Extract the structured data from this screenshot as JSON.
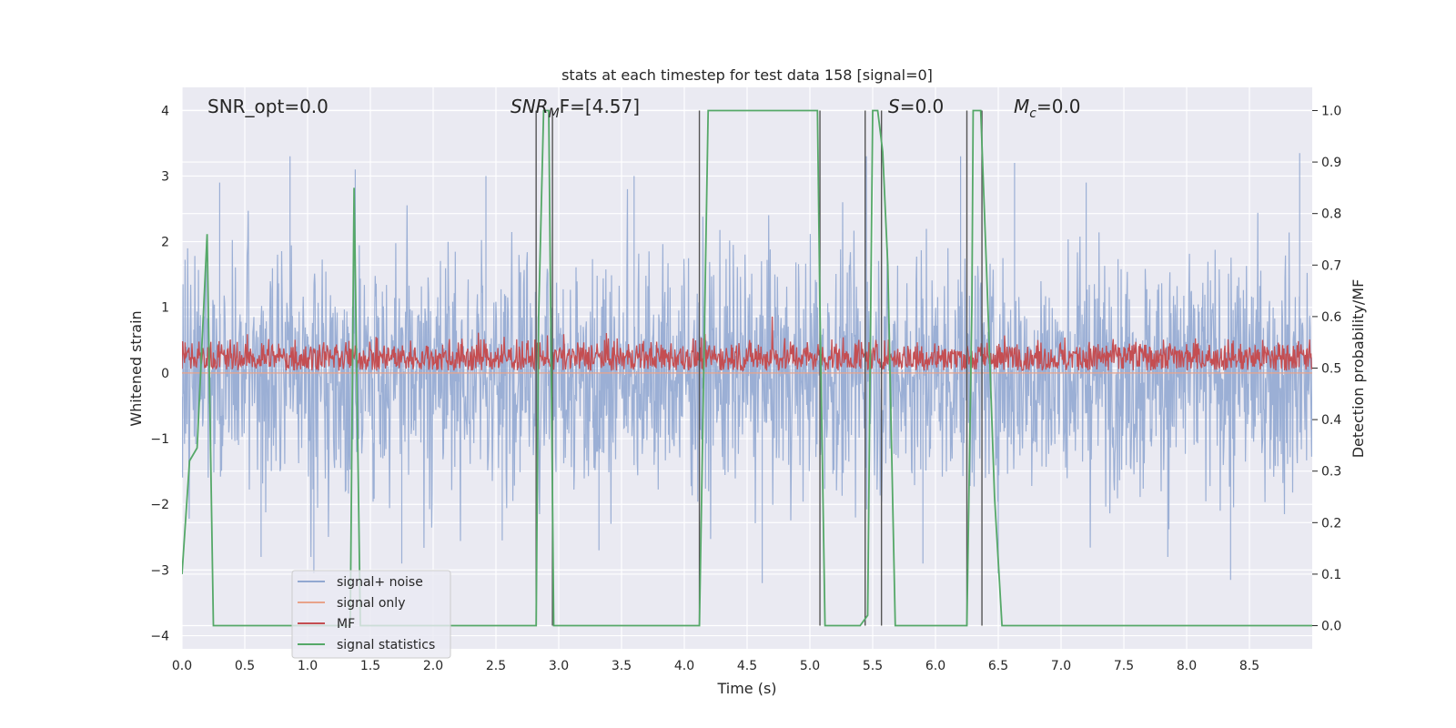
{
  "chart_data": {
    "type": "line",
    "title": "stats at each timestep for test data 158 [signal=0]",
    "xlabel": "Time (s)",
    "ylabel": "Whitened strain",
    "y2label": "Detection probability/MF",
    "xlim": [
      0.0,
      9.0
    ],
    "ylim": [
      -4.2,
      4.35
    ],
    "y2lim": [
      -0.045,
      1.045
    ],
    "xticks": [
      "0.0",
      "0.5",
      "1.0",
      "1.5",
      "2.0",
      "2.5",
      "3.0",
      "3.5",
      "4.0",
      "4.5",
      "5.0",
      "5.5",
      "6.0",
      "6.5",
      "7.0",
      "7.5",
      "8.0",
      "8.5"
    ],
    "yticks": [
      "4",
      "3",
      "2",
      "1",
      "0",
      "−1",
      "−2",
      "−3",
      "−4"
    ],
    "y2ticks": [
      "1.0",
      "0.9",
      "0.8",
      "0.7",
      "0.6",
      "0.5",
      "0.4",
      "0.3",
      "0.2",
      "0.1",
      "0.0"
    ],
    "grid": true,
    "legend_position": "lower-left",
    "annotations": {
      "snr_opt": "SNR_opt=0.0",
      "snr_mf_main": "SNR",
      "snr_mf_sub": "M",
      "snr_mf_rest": "F=[4.57]",
      "s_main": "S",
      "s_rest": "=0.0",
      "mc_main": "M",
      "mc_sub": "c",
      "mc_rest": "=0.0"
    },
    "series": [
      {
        "name": "signal+ noise",
        "color": "#92a8d1",
        "description_values": "Gaussian-like whitened noise, mostly within -1.5 to 1.5, peaks reaching about ±3.3",
        "envelope": {
          "x": [
            0.0,
            9.0
          ],
          "ylow": -1.5,
          "yhigh": 1.5
        },
        "spikes": [
          {
            "x": 0.86,
            "y": 3.3
          },
          {
            "x": 1.38,
            "y": 3.1
          },
          {
            "x": 0.3,
            "y": 2.9
          },
          {
            "x": 2.42,
            "y": 3.0
          },
          {
            "x": 3.6,
            "y": 3.0
          },
          {
            "x": 5.45,
            "y": 3.3
          },
          {
            "x": 6.2,
            "y": 3.3
          },
          {
            "x": 6.63,
            "y": 3.2
          },
          {
            "x": 8.9,
            "y": 3.35
          },
          {
            "x": 7.2,
            "y": 2.9
          },
          {
            "x": 1.05,
            "y": -3.05
          },
          {
            "x": 1.75,
            "y": -2.9
          },
          {
            "x": 4.62,
            "y": -3.2
          },
          {
            "x": 6.5,
            "y": -3.05
          },
          {
            "x": 8.35,
            "y": -3.15
          },
          {
            "x": 3.32,
            "y": -2.7
          },
          {
            "x": 0.63,
            "y": -2.8
          },
          {
            "x": 7.85,
            "y": -2.8
          },
          {
            "x": 5.9,
            "y": -2.9
          },
          {
            "x": 2.55,
            "y": -2.55
          }
        ]
      },
      {
        "name": "signal only",
        "color": "#e8a38a",
        "values_note": "flat at 0"
      },
      {
        "name": "MF",
        "color": "#c44e52",
        "axis": "right",
        "description_values": "matched-filter output fluctuating around 0.52 on the right axis, range ~0.49-0.59",
        "band": [
          0.495,
          0.59
        ],
        "peak": {
          "x": 4.7,
          "y": 0.6
        }
      },
      {
        "name": "signal statistics",
        "color": "#55a868",
        "axis": "right",
        "x": [
          0.0,
          0.06,
          0.12,
          0.2,
          0.25,
          1.34,
          1.37,
          1.42,
          2.82,
          2.84,
          2.88,
          2.92,
          2.96,
          2.99,
          3.0,
          4.11,
          4.12,
          4.19,
          5.06,
          5.08,
          5.12,
          5.4,
          5.46,
          5.5,
          5.54,
          5.58,
          5.62,
          5.68,
          6.25,
          6.29,
          6.3,
          6.36,
          6.42,
          6.47,
          6.53,
          9.0
        ],
        "y": [
          0.1,
          0.32,
          0.345,
          0.76,
          0.0,
          0.0,
          0.85,
          0.0,
          0.0,
          0.6,
          1.0,
          1.0,
          0.0,
          0.0,
          0.0,
          0.0,
          0.0,
          1.0,
          1.0,
          0.62,
          0.0,
          0.0,
          0.02,
          1.0,
          1.0,
          0.92,
          0.7,
          0.0,
          0.0,
          0.62,
          1.0,
          1.0,
          0.6,
          0.25,
          0.0,
          0.0
        ]
      }
    ],
    "vertical_markers": {
      "color": "#555555",
      "x": [
        2.82,
        2.95,
        4.12,
        5.08,
        5.44,
        5.57,
        6.25,
        6.37
      ]
    }
  },
  "legend": [
    {
      "label": "signal+ noise",
      "color": "#92a8d1"
    },
    {
      "label": "signal only",
      "color": "#e8a38a"
    },
    {
      "label": "MF",
      "color": "#c44e52"
    },
    {
      "label": "signal statistics",
      "color": "#55a868"
    }
  ]
}
